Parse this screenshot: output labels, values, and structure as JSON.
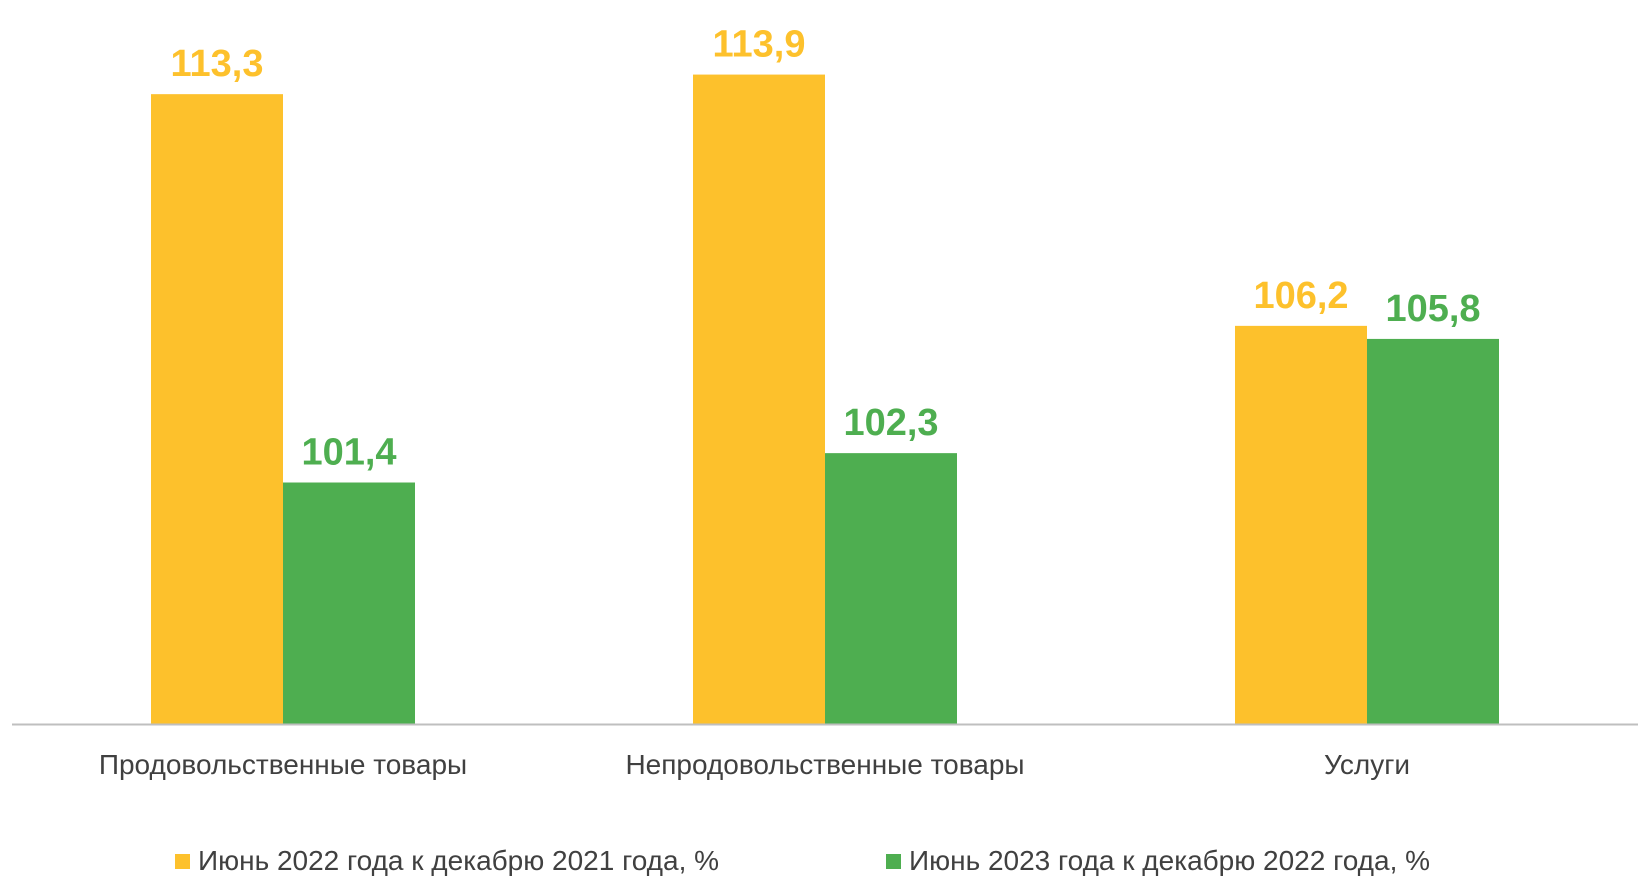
{
  "chart_data": {
    "type": "bar",
    "categories": [
      "Продовольственные товары",
      "Непродовольственные товары",
      "Услуги"
    ],
    "series": [
      {
        "name": "Июнь 2022 года к декабрю 2021 года, %",
        "values": [
          113.3,
          113.9,
          106.2
        ],
        "labels": [
          "113,3",
          "113,9",
          "106,2"
        ],
        "color": "#FDC12C"
      },
      {
        "name": "Июнь 2023 года к декабрю 2022 года, %",
        "values": [
          101.4,
          102.3,
          105.8
        ],
        "labels": [
          "101,4",
          "102,3",
          "105,8"
        ],
        "color": "#4EAE50"
      }
    ],
    "title": "",
    "xlabel": "",
    "ylabel": "",
    "ylim": [
      94,
      114.5
    ],
    "grid": false,
    "legend_position": "bottom"
  }
}
